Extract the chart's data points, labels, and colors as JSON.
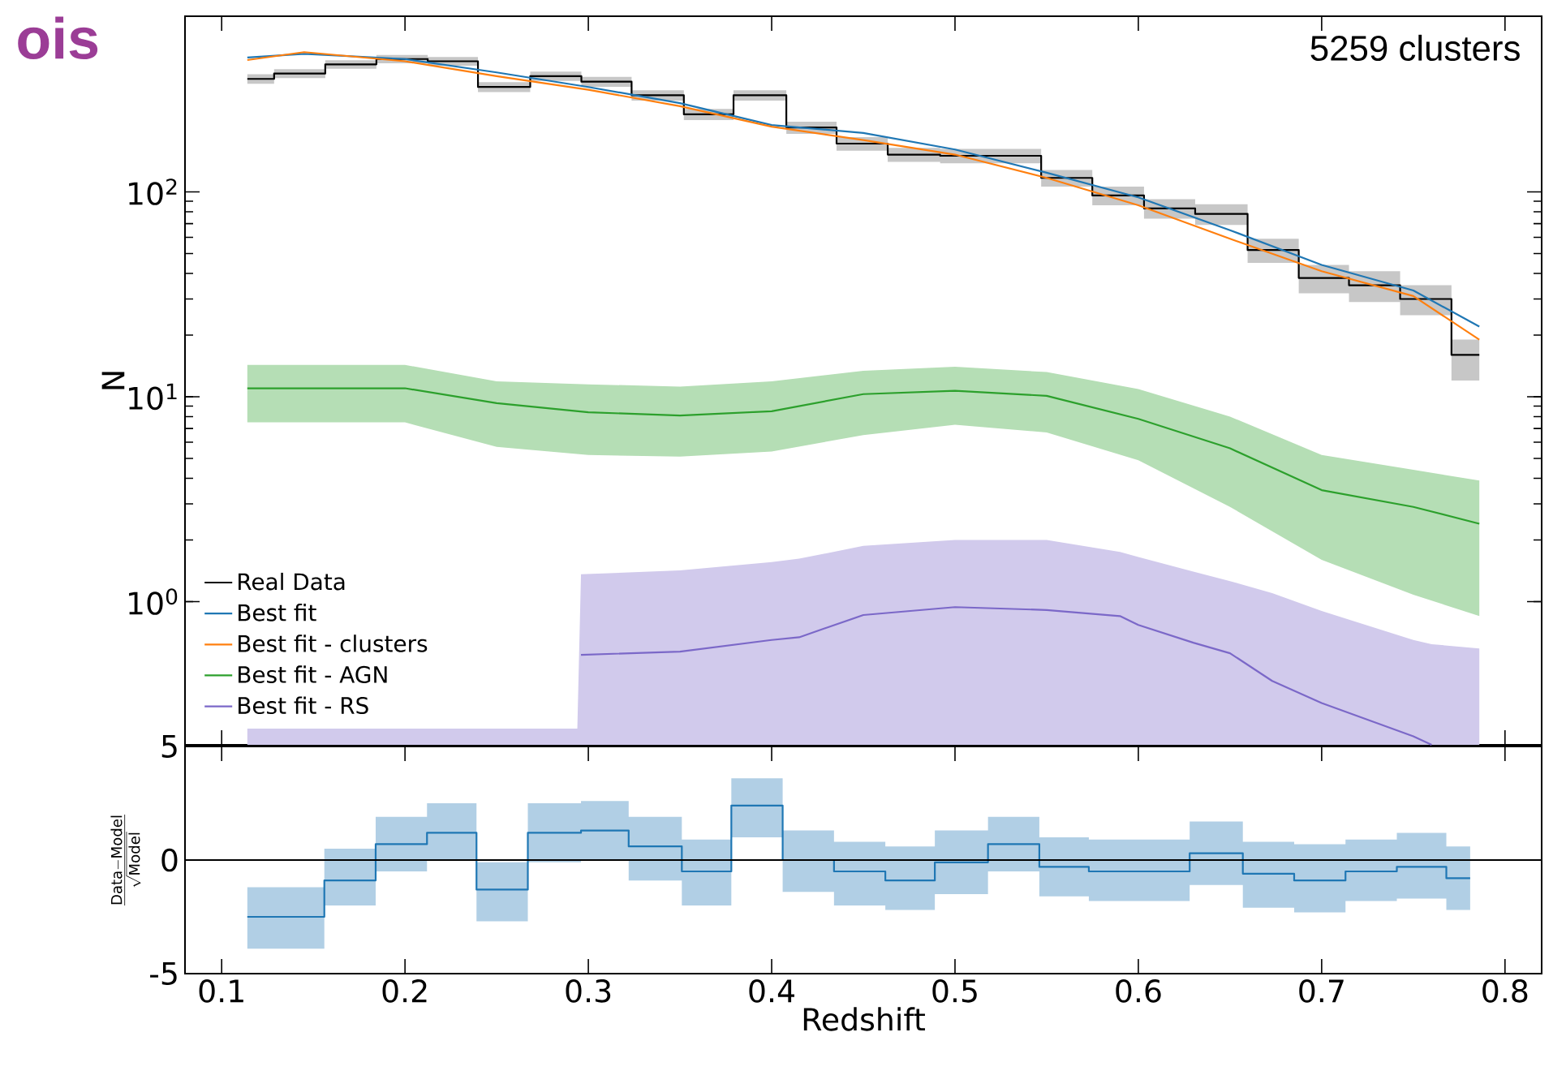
{
  "chart_data": [
    {
      "type": "line",
      "log": "y",
      "legend": "bottom left",
      "ylabel": "N",
      "tick_labels": "y",
      "xlim": [
        0.08,
        0.82
      ],
      "xticks": [
        0.1,
        0.2,
        0.3,
        0.4,
        0.5,
        0.6,
        0.7,
        0.8
      ],
      "ylim": [
        0.2,
        720
      ],
      "yticks": [
        {
          "value": 1,
          "label": "10$^{0}$"
        },
        {
          "value": 10,
          "label": "10$^{1}$"
        },
        {
          "value": 100,
          "label": "10$^{2}$"
        }
      ],
      "annotations": [
        "5259 clusters",
        "ois"
      ],
      "series": [
        {
          "name": "Real Data",
          "type": "step",
          "color": "#000000",
          "x": [
            0.114,
            0.1286,
            0.1565,
            0.1844,
            0.2124,
            0.2398,
            0.2683,
            0.2962,
            0.3236,
            0.3521,
            0.3792,
            0.408,
            0.4354,
            0.4633,
            0.4919,
            0.5191,
            0.547,
            0.5749,
            0.6031,
            0.631,
            0.6596,
            0.6875,
            0.7149,
            0.7428,
            0.7708,
            0.786
          ],
          "values": [
            356,
            378,
            419,
            445,
            434,
            325,
            367,
            345,
            296,
            239,
            296,
            206,
            172,
            152,
            150,
            150,
            117,
            96,
            83,
            78,
            52,
            38,
            35,
            30,
            16,
            16
          ],
          "lower": [
            337,
            359,
            399,
            424,
            413,
            307,
            348,
            326,
            279,
            224,
            279,
            192,
            159,
            140,
            138,
            138,
            106,
            86,
            74,
            69,
            45,
            32,
            29,
            25,
            12,
            12
          ],
          "upper": [
            375,
            397,
            439,
            466,
            455,
            343,
            386,
            364,
            313,
            254,
            313,
            220,
            185,
            164,
            162,
            162,
            128,
            106,
            92,
            87,
            59,
            44,
            41,
            35,
            19,
            19
          ]
        },
        {
          "name": "Best fit",
          "color": "#1f77b4",
          "x": [
            0.114,
            0.145,
            0.2,
            0.25,
            0.3,
            0.35,
            0.4,
            0.45,
            0.5,
            0.55,
            0.6,
            0.65,
            0.7,
            0.75,
            0.786
          ],
          "values": [
            453,
            472,
            445,
            383,
            325,
            271,
            212,
            194,
            161,
            124,
            94,
            65,
            44,
            33,
            22
          ]
        },
        {
          "name": "Best fit - clusters",
          "color": "#ff7f0e",
          "x": [
            0.114,
            0.145,
            0.2,
            0.25,
            0.3,
            0.35,
            0.4,
            0.45,
            0.5,
            0.55,
            0.6,
            0.65,
            0.7,
            0.75,
            0.786
          ],
          "values": [
            440,
            481,
            434,
            367,
            315,
            262,
            208,
            179,
            152,
            117,
            86,
            59,
            41,
            31,
            19
          ]
        },
        {
          "name": "Best fit - AGN",
          "color": "#2ca02c",
          "x": [
            0.114,
            0.2,
            0.25,
            0.3,
            0.35,
            0.4,
            0.45,
            0.5,
            0.55,
            0.6,
            0.65,
            0.7,
            0.75,
            0.786
          ],
          "values": [
            11.0,
            11.0,
            9.3,
            8.4,
            8.1,
            8.5,
            10.3,
            10.7,
            10.1,
            7.8,
            5.6,
            3.5,
            2.9,
            2.4
          ],
          "lower": [
            7.5,
            7.5,
            5.7,
            5.2,
            5.1,
            5.4,
            6.5,
            7.3,
            6.7,
            4.9,
            2.9,
            1.6,
            1.08,
            0.85
          ],
          "upper": [
            14.3,
            14.3,
            11.9,
            11.5,
            11.2,
            11.9,
            13.4,
            14.0,
            13.2,
            10.9,
            8.0,
            5.2,
            4.4,
            3.9
          ]
        },
        {
          "name": "Best fit - RS",
          "color": "#7b68c8",
          "x": [
            0.114,
            0.294,
            0.296,
            0.35,
            0.4,
            0.415,
            0.45,
            0.5,
            0.55,
            0.59,
            0.6,
            0.63,
            0.65,
            0.673,
            0.7,
            0.75,
            0.76,
            0.786
          ],
          "values": [
            null,
            null,
            0.55,
            0.57,
            0.65,
            0.67,
            0.86,
            0.94,
            0.91,
            0.85,
            0.77,
            0.63,
            0.56,
            0.41,
            0.32,
            0.22,
            0.2,
            null
          ],
          "lower": [
            0.2,
            0.2,
            0.2,
            0.2,
            0.2,
            0.2,
            0.2,
            0.2,
            0.2,
            0.2,
            0.2,
            0.2,
            0.2,
            0.2,
            0.2,
            0.2,
            0.2,
            0.2
          ],
          "upper": [
            0.24,
            0.24,
            1.36,
            1.42,
            1.56,
            1.62,
            1.87,
            2.0,
            2.0,
            1.75,
            1.65,
            1.4,
            1.26,
            1.1,
            0.9,
            0.65,
            0.62,
            0.59
          ]
        }
      ]
    },
    {
      "type": "step",
      "xlabel": "Redshift",
      "ylabel": "\\frac{\\mathrm{Data-Model}}{\\sqrt{\\mathrm{Model}}}",
      "xlim": [
        0.08,
        0.82
      ],
      "xticks": [
        0.1,
        0.2,
        0.3,
        0.4,
        0.5,
        0.6,
        0.7,
        0.8
      ],
      "ylim": [
        -5,
        5
      ],
      "yticks": [
        -5,
        0,
        5
      ],
      "ref_lines": [
        {
          "axis": "y",
          "value": 0,
          "color": "#000000"
        }
      ],
      "series": [
        {
          "color": "#1f77b4",
          "x": [
            0.114,
            0.156,
            0.184,
            0.212,
            0.239,
            0.267,
            0.296,
            0.322,
            0.351,
            0.378,
            0.406,
            0.434,
            0.462,
            0.489,
            0.518,
            0.546,
            0.573,
            0.601,
            0.628,
            0.657,
            0.685,
            0.713,
            0.741,
            0.768,
            0.781
          ],
          "values": [
            -2.5,
            -0.9,
            0.7,
            1.2,
            -1.3,
            1.2,
            1.3,
            0.6,
            -0.5,
            2.4,
            0.0,
            -0.5,
            -0.9,
            -0.1,
            0.7,
            -0.3,
            -0.5,
            -0.5,
            0.3,
            -0.6,
            -0.9,
            -0.5,
            -0.3,
            -0.8,
            -0.8
          ],
          "lower": [
            -3.9,
            -2.0,
            -0.5,
            0.0,
            -2.7,
            -0.1,
            0.0,
            -0.9,
            -2.0,
            1.0,
            -1.4,
            -2.0,
            -2.2,
            -1.5,
            -0.5,
            -1.6,
            -1.8,
            -1.8,
            -1.1,
            -2.1,
            -2.3,
            -1.8,
            -1.7,
            -2.2,
            -2.2
          ],
          "upper": [
            -1.2,
            0.5,
            1.9,
            2.5,
            -0.1,
            2.5,
            2.6,
            1.9,
            0.9,
            3.6,
            1.3,
            0.8,
            0.6,
            1.3,
            1.9,
            1.0,
            0.9,
            0.9,
            1.7,
            0.8,
            0.7,
            0.9,
            1.2,
            0.6,
            0.6
          ]
        }
      ]
    }
  ]
}
